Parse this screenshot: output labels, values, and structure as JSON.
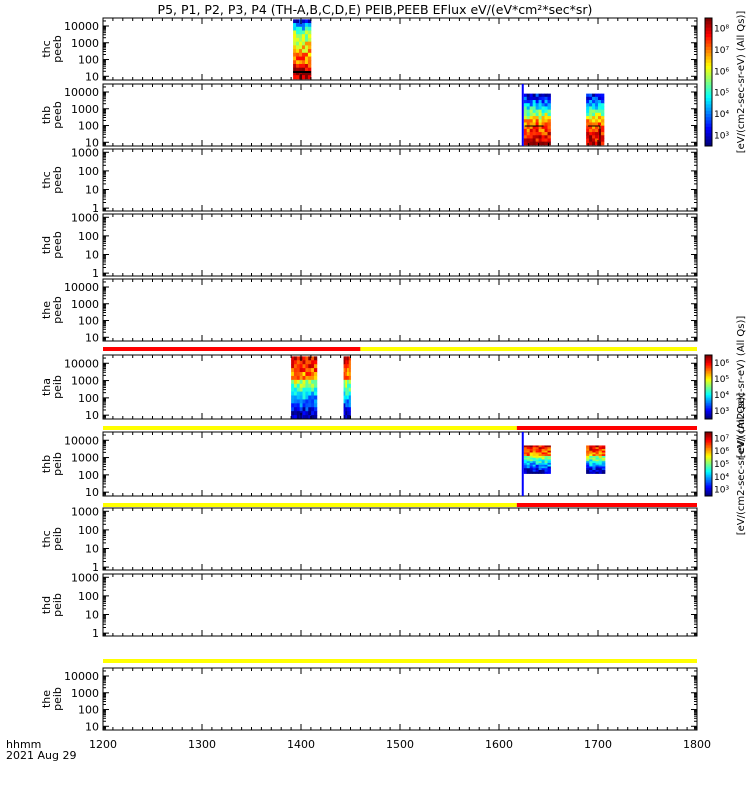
{
  "title": "P5, P1, P2, P3, P4 (TH-A,B,C,D,E) PEIB,PEEB EFlux eV/(eV*cm²*sec*sr)",
  "footer": {
    "hhmm": "hhmm",
    "date": "2021 Aug 29"
  },
  "chart_data": {
    "type": "heatmap",
    "x_ticks": [
      "1200",
      "1300",
      "1400",
      "1500",
      "1600",
      "1700",
      "1800"
    ],
    "xlim": [
      1200,
      1800
    ],
    "xscale": "time (hhmm)",
    "yscale": "log",
    "colorbars": [
      {
        "label": "[eV/(cm2-sec-sr-eV) (All Qs)]",
        "ticks": [
          "10³",
          "10⁴",
          "10⁵",
          "10⁶",
          "10⁷",
          "10⁸"
        ],
        "scale": "log"
      },
      {
        "label": "[eV/(cm2-sec-sr-eV) (All Qs)]",
        "ticks": [
          "10³",
          "10⁴",
          "10⁵",
          "10⁶"
        ],
        "scale": "log"
      },
      {
        "label": "[eV/(cm2-sec-sr-eV) (All Qs)]",
        "ticks": [
          "10³",
          "10⁴",
          "10⁵",
          "10⁶",
          "10⁷"
        ],
        "scale": "log"
      }
    ],
    "panels": [
      {
        "label": "thc peeb",
        "yticks": [
          "10",
          "100",
          "1000",
          "10000"
        ],
        "ylim": [
          6,
          30000
        ],
        "blocks": [
          {
            "t0": 1392,
            "t1": 1410,
            "e0": 7,
            "e1": 25000,
            "band": "thaeeb"
          }
        ]
      },
      {
        "label": "thb peeb",
        "yticks": [
          "10",
          "100",
          "1000",
          "10000"
        ],
        "ylim": [
          6,
          30000
        ],
        "blocks": [
          {
            "t0": 1625,
            "t1": 1652,
            "e0": 7,
            "e1": 8000,
            "band": "thbeeb"
          },
          {
            "t0": 1688,
            "t1": 1706,
            "e0": 7,
            "e1": 8000,
            "band": "thbeeb"
          }
        ]
      },
      {
        "label": "thc peeb",
        "yticks": [
          "1",
          "10",
          "100",
          "1000"
        ],
        "ylim": [
          0.7,
          1500
        ],
        "blocks": []
      },
      {
        "label": "thd peeb",
        "yticks": [
          "1",
          "10",
          "100",
          "1000"
        ],
        "ylim": [
          0.7,
          1500
        ],
        "blocks": []
      },
      {
        "label": "the peeb",
        "yticks": [
          "10",
          "100",
          "1000",
          "10000"
        ],
        "ylim": [
          6,
          30000
        ],
        "blocks": []
      },
      {
        "label": "tha peib",
        "yticks": [
          "10",
          "100",
          "1000",
          "10000"
        ],
        "ylim": [
          6,
          30000
        ],
        "blocks": [
          {
            "t0": 1390,
            "t1": 1416,
            "e0": 6,
            "e1": 25000,
            "band": "ion"
          },
          {
            "t0": 1443,
            "t1": 1450,
            "e0": 6,
            "e1": 25000,
            "band": "ion"
          }
        ]
      },
      {
        "label": "thb peib",
        "yticks": [
          "10",
          "100",
          "1000",
          "10000"
        ],
        "ylim": [
          6,
          30000
        ],
        "blocks": [
          {
            "t0": 1625,
            "t1": 1652,
            "e0": 120,
            "e1": 5000,
            "band": "ion"
          },
          {
            "t0": 1688,
            "t1": 1707,
            "e0": 120,
            "e1": 5000,
            "band": "ion"
          }
        ]
      },
      {
        "label": "thc peib",
        "yticks": [
          "1",
          "10",
          "100",
          "1000"
        ],
        "ylim": [
          0.7,
          1500
        ],
        "blocks": []
      },
      {
        "label": "thd peib",
        "yticks": [
          "1",
          "10",
          "100",
          "1000"
        ],
        "ylim": [
          0.7,
          1500
        ],
        "blocks": []
      },
      {
        "label": "the peib",
        "yticks": [
          "10",
          "100",
          "1000",
          "10000"
        ],
        "ylim": [
          6,
          30000
        ],
        "blocks": []
      }
    ],
    "mode_bars": [
      {
        "after_panel": 4,
        "segments": [
          {
            "t0": 1200,
            "t1": 1460,
            "color": "#ff0000"
          },
          {
            "t0": 1460,
            "t1": 1800,
            "color": "#ffff00"
          }
        ]
      },
      {
        "after_panel": 5,
        "segments": [
          {
            "t0": 1200,
            "t1": 1618,
            "color": "#ffff00"
          },
          {
            "t0": 1618,
            "t1": 1800,
            "color": "#ff0000"
          }
        ]
      },
      {
        "after_panel": 6,
        "segments": [
          {
            "t0": 1200,
            "t1": 1618,
            "color": "#ffff00"
          },
          {
            "t0": 1618,
            "t1": 1800,
            "color": "#ff0000"
          }
        ]
      },
      {
        "after_panel": 8,
        "segments": [
          {
            "t0": 1200,
            "t1": 1800,
            "color": "#ffff00"
          }
        ]
      }
    ]
  }
}
